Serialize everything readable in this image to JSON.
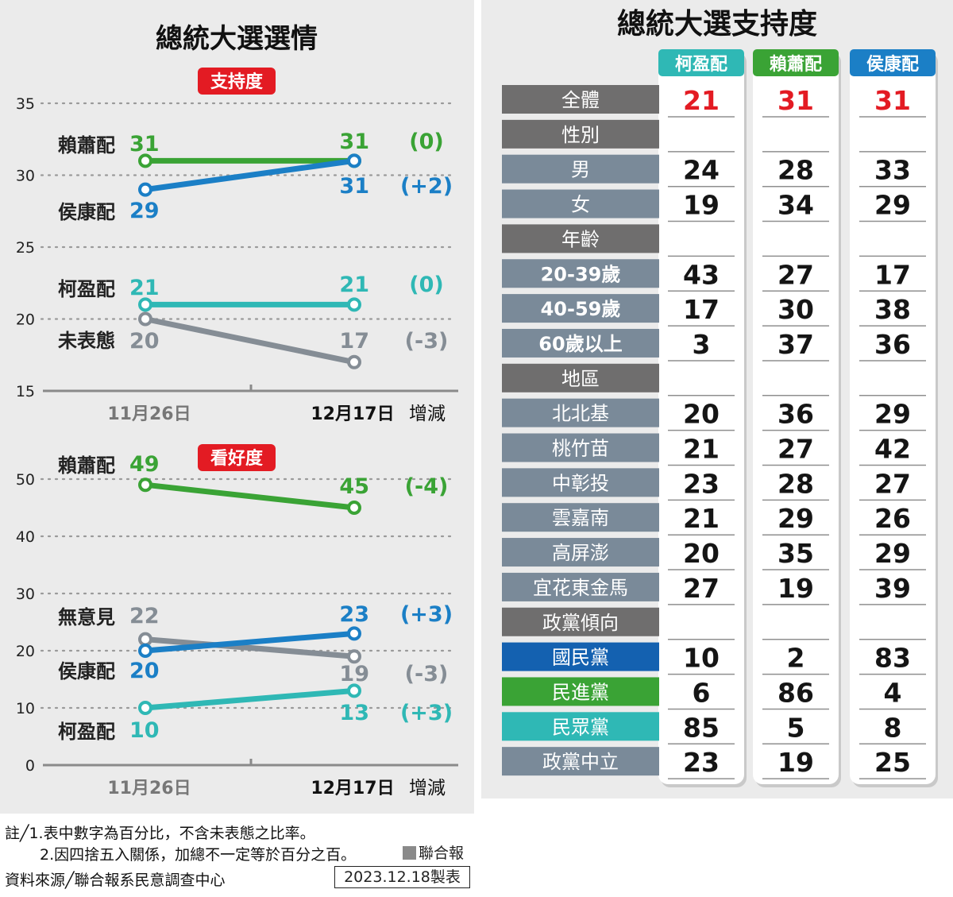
{
  "chart_data": [
    {
      "type": "line",
      "title": "總統大選選情",
      "badge": "支持度",
      "x": [
        "11月26日",
        "12月17日"
      ],
      "change_header": "增減",
      "ylim": [
        15,
        35
      ],
      "yticks": [
        "35",
        "30",
        "25",
        "20",
        "15"
      ],
      "series": [
        {
          "name": "賴蕭配",
          "values": [
            31,
            31
          ],
          "change": "(0)",
          "color": "#3aa335"
        },
        {
          "name": "侯康配",
          "values": [
            29,
            31
          ],
          "change": "(+2)",
          "color": "#1b7fc6"
        },
        {
          "name": "柯盈配",
          "values": [
            21,
            21
          ],
          "change": "(0)",
          "color": "#2fb8b5"
        },
        {
          "name": "未表態",
          "values": [
            20,
            17
          ],
          "change": "(-3)",
          "color": "#858d95"
        }
      ]
    },
    {
      "type": "line",
      "badge": "看好度",
      "x": [
        "11月26日",
        "12月17日"
      ],
      "change_header": "增減",
      "ylim": [
        0,
        50
      ],
      "yticks": [
        "50",
        "40",
        "30",
        "20",
        "10",
        "0"
      ],
      "series": [
        {
          "name": "賴蕭配",
          "values": [
            49,
            45
          ],
          "change": "(-4)",
          "color": "#3aa335"
        },
        {
          "name": "無意見",
          "values": [
            22,
            19
          ],
          "change": "(-3)",
          "color": "#858d95"
        },
        {
          "name": "侯康配",
          "values": [
            20,
            23
          ],
          "change": "(+3)",
          "color": "#1b7fc6"
        },
        {
          "name": "柯盈配",
          "values": [
            10,
            13
          ],
          "change": "(+3)",
          "color": "#2fb8b5"
        }
      ]
    },
    {
      "type": "table",
      "title": "總統大選支持度",
      "columns": [
        {
          "name": "柯盈配",
          "color": "#2fb8b5"
        },
        {
          "name": "賴蕭配",
          "color": "#3aa335"
        },
        {
          "name": "侯康配",
          "color": "#1b7fc6"
        }
      ],
      "rows": [
        {
          "label": "全體",
          "style": "total",
          "values": [
            "21",
            "31",
            "31"
          ]
        },
        {
          "label": "性別",
          "style": "header",
          "values": []
        },
        {
          "label": "男",
          "style": "row",
          "values": [
            "24",
            "28",
            "33"
          ]
        },
        {
          "label": "女",
          "style": "row",
          "values": [
            "19",
            "34",
            "29"
          ]
        },
        {
          "label": "年齡",
          "style": "header",
          "values": []
        },
        {
          "label": "20-39歲",
          "style": "row",
          "values": [
            "43",
            "27",
            "17"
          ]
        },
        {
          "label": "40-59歲",
          "style": "row",
          "values": [
            "17",
            "30",
            "38"
          ]
        },
        {
          "label": "60歲以上",
          "style": "row",
          "values": [
            "3",
            "37",
            "36"
          ]
        },
        {
          "label": "地區",
          "style": "header",
          "values": []
        },
        {
          "label": "北北基",
          "style": "row",
          "values": [
            "20",
            "36",
            "29"
          ]
        },
        {
          "label": "桃竹苗",
          "style": "row",
          "values": [
            "21",
            "27",
            "42"
          ]
        },
        {
          "label": "中彰投",
          "style": "row",
          "values": [
            "23",
            "28",
            "27"
          ]
        },
        {
          "label": "雲嘉南",
          "style": "row",
          "values": [
            "21",
            "29",
            "26"
          ]
        },
        {
          "label": "高屏澎",
          "style": "row",
          "values": [
            "20",
            "35",
            "29"
          ]
        },
        {
          "label": "宜花東金馬",
          "style": "row",
          "values": [
            "27",
            "19",
            "39"
          ]
        },
        {
          "label": "政黨傾向",
          "style": "header",
          "values": []
        },
        {
          "label": "國民黨",
          "style": "kmt",
          "values": [
            "10",
            "2",
            "83"
          ]
        },
        {
          "label": "民進黨",
          "style": "dpp",
          "values": [
            "6",
            "86",
            "4"
          ]
        },
        {
          "label": "民眾黨",
          "style": "tpp",
          "values": [
            "85",
            "5",
            "8"
          ]
        },
        {
          "label": "政黨中立",
          "style": "row",
          "values": [
            "23",
            "19",
            "25"
          ]
        }
      ]
    }
  ],
  "colors": {
    "total_value": "#e31b23",
    "badge_red": "#e31b23",
    "kmt": "#1461b0",
    "dpp": "#3aa335",
    "tpp": "#2fb8b5",
    "row_gray": "#7a8a99",
    "header_dark": "#6f6e6e"
  },
  "notes": {
    "line1": "註╱1.表中數字為百分比，不含未表態之比率。",
    "line2": "2.因四捨五入關係，加總不一定等於百分之百。",
    "source": "資料來源╱聯合報系民意調查中心",
    "logo": "聯合報",
    "date": "2023.12.18製表"
  }
}
